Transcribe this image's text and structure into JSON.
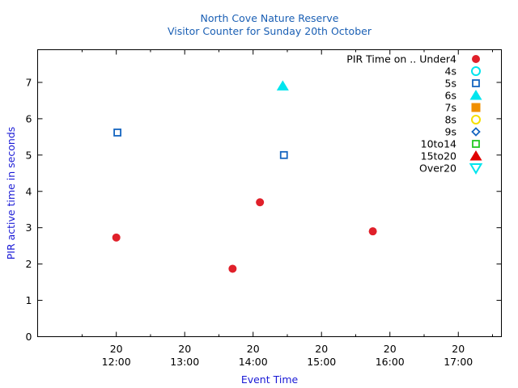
{
  "chart_data": {
    "type": "scatter",
    "title_lines": [
      "North Cove Nature Reserve",
      "Visitor Counter for Sunday 20th October"
    ],
    "xlabel": "Event Time",
    "ylabel": "PIR active time in seconds",
    "x_ticks": [
      {
        "day": "20",
        "time": "12:00",
        "hours": 12
      },
      {
        "day": "20",
        "time": "13:00",
        "hours": 13
      },
      {
        "day": "20",
        "time": "14:00",
        "hours": 14
      },
      {
        "day": "20",
        "time": "15:00",
        "hours": 15
      },
      {
        "day": "20",
        "time": "16:00",
        "hours": 16
      },
      {
        "day": "20",
        "time": "17:00",
        "hours": 17
      }
    ],
    "xlim_hours": [
      10.85,
      17.63
    ],
    "ylim": [
      0,
      7.9
    ],
    "y_ticks": [
      "0",
      "1",
      "2",
      "3",
      "4",
      "5",
      "6",
      "7"
    ],
    "legend_position": "top-right",
    "series": [
      {
        "name": "PIR Time on .. Under4",
        "marker": "filled-circle",
        "color": "#e0202a",
        "points": [
          {
            "x": "12:00",
            "y": 2.73
          },
          {
            "x": "13:42",
            "y": 1.87
          },
          {
            "x": "14:06",
            "y": 3.7
          },
          {
            "x": "15:45",
            "y": 2.9
          }
        ]
      },
      {
        "name": "4s",
        "marker": "open-circle",
        "color": "#00e5ee",
        "points": []
      },
      {
        "name": "5s",
        "marker": "open-square",
        "color": "#1565c0",
        "points": [
          {
            "x": "12:01",
            "y": 5.62
          },
          {
            "x": "14:27",
            "y": 5.0
          }
        ]
      },
      {
        "name": "6s",
        "marker": "filled-triangle",
        "color": "#00e5ee",
        "points": [
          {
            "x": "14:26",
            "y": 6.9
          }
        ]
      },
      {
        "name": "7s",
        "marker": "filled-square",
        "color": "#f09000",
        "points": []
      },
      {
        "name": "8s",
        "marker": "open-circle",
        "color": "#f5e000",
        "points": []
      },
      {
        "name": "9s",
        "marker": "open-diamond",
        "color": "#1565c0",
        "points": []
      },
      {
        "name": "10to14",
        "marker": "open-square",
        "color": "#22c822",
        "points": []
      },
      {
        "name": "15to20",
        "marker": "filled-triangle",
        "color": "#e00000",
        "points": []
      },
      {
        "name": "Over20",
        "marker": "open-triangle-down",
        "color": "#00e5ee",
        "points": []
      }
    ]
  }
}
